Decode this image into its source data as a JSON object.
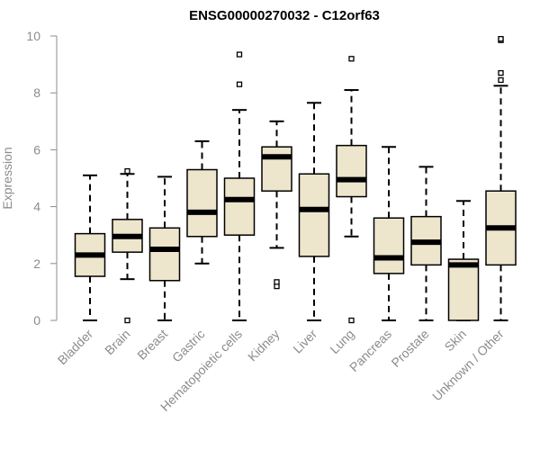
{
  "chart_data": {
    "type": "boxplot",
    "title": "ENSG00000270032 - C12orf63",
    "xlabel": "",
    "ylabel": "Expression",
    "ylim": [
      0,
      10
    ],
    "yticks": [
      0,
      2,
      4,
      6,
      8,
      10
    ],
    "grid": false,
    "box_color": "#ede5cc",
    "categories": [
      "Bladder",
      "Brain",
      "Breast",
      "Gastric",
      "Hematopoietic cells",
      "Kidney",
      "Liver",
      "Lung",
      "Pancreas",
      "Prostate",
      "Skin",
      "Unknown / Other"
    ],
    "boxes": [
      {
        "min": 0.0,
        "q1": 1.55,
        "median": 2.3,
        "q3": 3.05,
        "max": 5.1,
        "outliers": []
      },
      {
        "min": 1.45,
        "q1": 2.4,
        "median": 2.95,
        "q3": 3.55,
        "max": 5.15,
        "outliers": [
          0.0,
          5.25
        ]
      },
      {
        "min": 0.0,
        "q1": 1.4,
        "median": 2.5,
        "q3": 3.25,
        "max": 5.05,
        "outliers": []
      },
      {
        "min": 2.0,
        "q1": 2.95,
        "median": 3.8,
        "q3": 5.3,
        "max": 6.3,
        "outliers": []
      },
      {
        "min": 0.0,
        "q1": 3.0,
        "median": 4.25,
        "q3": 5.0,
        "max": 7.4,
        "outliers": [
          8.3,
          9.35
        ]
      },
      {
        "min": 2.55,
        "q1": 4.55,
        "median": 5.75,
        "q3": 6.1,
        "max": 7.0,
        "outliers": [
          1.2,
          1.35
        ]
      },
      {
        "min": 0.0,
        "q1": 2.25,
        "median": 3.9,
        "q3": 5.15,
        "max": 7.65,
        "outliers": []
      },
      {
        "min": 2.95,
        "q1": 4.35,
        "median": 4.95,
        "q3": 6.15,
        "max": 8.1,
        "outliers": [
          0.0,
          9.2
        ]
      },
      {
        "min": 0.0,
        "q1": 1.65,
        "median": 2.2,
        "q3": 3.6,
        "max": 6.1,
        "outliers": []
      },
      {
        "min": 0.0,
        "q1": 1.95,
        "median": 2.75,
        "q3": 3.65,
        "max": 5.4,
        "outliers": []
      },
      {
        "min": 0.0,
        "q1": 0.0,
        "median": 1.95,
        "q3": 2.15,
        "max": 4.2,
        "outliers": []
      },
      {
        "min": 0.0,
        "q1": 1.95,
        "median": 3.25,
        "q3": 4.55,
        "max": 8.25,
        "outliers": [
          8.45,
          8.7,
          9.85,
          9.9
        ]
      }
    ]
  }
}
